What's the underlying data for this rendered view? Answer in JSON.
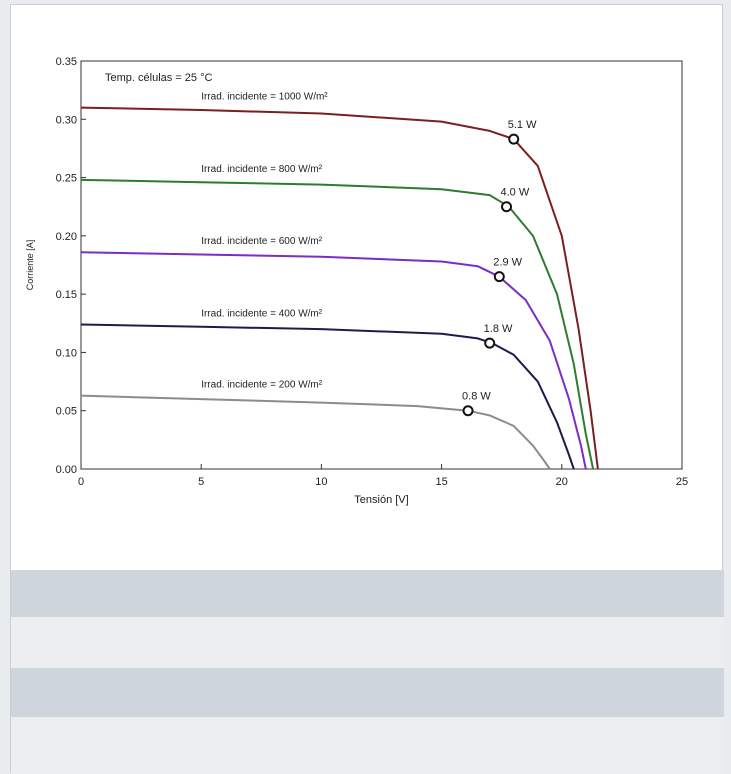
{
  "chart_data": {
    "type": "line",
    "title": "",
    "xlabel": "Tensión [V]",
    "ylabel": "Corriente [A]",
    "xlim": [
      0,
      25
    ],
    "ylim": [
      0,
      0.35
    ],
    "xticks": [
      "0",
      "5",
      "10",
      "15",
      "20",
      "25"
    ],
    "yticks": [
      "0.00",
      "0.05",
      "0.10",
      "0.15",
      "0.20",
      "0.25",
      "0.30",
      "0.35"
    ],
    "grid": false,
    "annotation": "Temp. células = 25 °C",
    "series": [
      {
        "name": "Irrad. incidente = 1000 W/m²",
        "color": "#7a1f1f",
        "x": [
          0,
          5,
          10,
          15,
          17,
          18,
          19,
          20,
          20.7,
          21.2,
          21.5
        ],
        "y": [
          0.31,
          0.308,
          0.305,
          0.298,
          0.29,
          0.283,
          0.26,
          0.2,
          0.12,
          0.05,
          0.0
        ],
        "mpp": {
          "x": 18.0,
          "y": 0.283,
          "label": "5.1 W"
        }
      },
      {
        "name": "Irrad. incidente = 800 W/m²",
        "color": "#2e7d2e",
        "x": [
          0,
          5,
          10,
          15,
          17,
          17.8,
          18.8,
          19.8,
          20.5,
          21.0,
          21.3
        ],
        "y": [
          0.248,
          0.246,
          0.244,
          0.24,
          0.235,
          0.225,
          0.2,
          0.15,
          0.09,
          0.03,
          0.0
        ],
        "mpp": {
          "x": 17.7,
          "y": 0.225,
          "label": "4.0 W"
        }
      },
      {
        "name": "Irrad. incidente = 600 W/m²",
        "color": "#7b2cc9",
        "x": [
          0,
          5,
          10,
          15,
          16.5,
          17.4,
          18.5,
          19.5,
          20.3,
          20.8,
          21.0
        ],
        "y": [
          0.186,
          0.184,
          0.182,
          0.178,
          0.174,
          0.165,
          0.145,
          0.11,
          0.06,
          0.02,
          0.0
        ],
        "mpp": {
          "x": 17.4,
          "y": 0.165,
          "label": "2.9 W"
        }
      },
      {
        "name": "Irrad. incidente = 400 W/m²",
        "color": "#1d1b4e",
        "x": [
          0,
          5,
          10,
          15,
          16.5,
          17.1,
          18.0,
          19.0,
          19.8,
          20.3,
          20.5
        ],
        "y": [
          0.124,
          0.122,
          0.12,
          0.116,
          0.112,
          0.108,
          0.098,
          0.075,
          0.04,
          0.012,
          0.0
        ],
        "mpp": {
          "x": 17.0,
          "y": 0.108,
          "label": "1.8 W"
        }
      },
      {
        "name": "Irrad. incidente = 200 W/m²",
        "color": "#8c8c8c",
        "x": [
          0,
          5,
          10,
          14,
          16.1,
          17.0,
          18.0,
          18.8,
          19.3,
          19.5
        ],
        "y": [
          0.063,
          0.06,
          0.057,
          0.054,
          0.05,
          0.046,
          0.037,
          0.02,
          0.006,
          0.0
        ],
        "mpp": {
          "x": 16.1,
          "y": 0.05,
          "label": "0.8 W"
        }
      }
    ]
  },
  "ui": {
    "frame_bg": "#ffffff",
    "band_dark": "#cfd5dd",
    "band_light": "#eceeef"
  }
}
